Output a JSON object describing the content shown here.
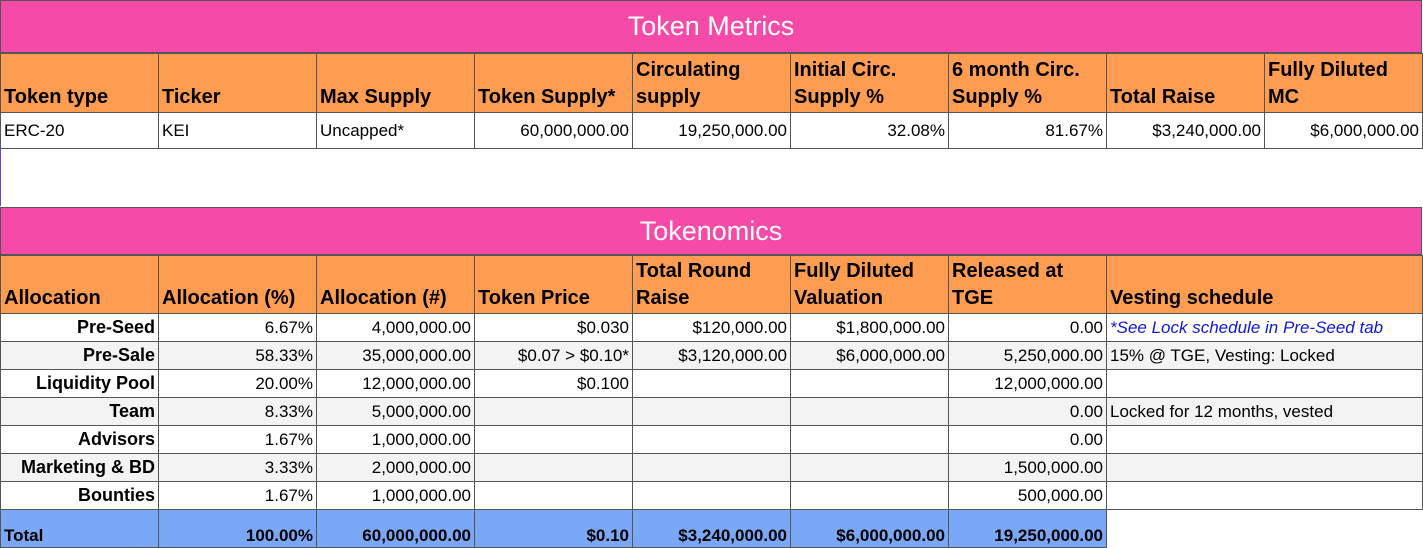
{
  "metrics": {
    "title": "Token Metrics",
    "headers": [
      "Token type",
      "Ticker",
      "Max Supply",
      "Token Supply*",
      "Circulating supply",
      "Initial Circ. Supply %",
      "6 month Circ. Supply %",
      "Total Raise",
      "Fully Diluted MC"
    ],
    "row": [
      "ERC-20",
      "KEI",
      "Uncapped*",
      "60,000,000.00",
      "19,250,000.00",
      "32.08%",
      "81.67%",
      "$3,240,000.00",
      "$6,000,000.00"
    ]
  },
  "tokenomics": {
    "title": "Tokenomics",
    "headers": [
      "Allocation",
      "Allocation (%)",
      "Allocation (#)",
      "Token Price",
      "Total Round Raise",
      "Fully Diluted Valuation",
      "Released at TGE",
      "Vesting schedule"
    ],
    "rows": [
      [
        "Pre-Seed",
        "6.67%",
        "4,000,000.00",
        "$0.030",
        "$120,000.00",
        "$1,800,000.00",
        "0.00",
        "*See Lock schedule in Pre-Seed tab"
      ],
      [
        "Pre-Sale",
        "58.33%",
        "35,000,000.00",
        "$0.07 > $0.10*",
        "$3,120,000.00",
        "$6,000,000.00",
        "5,250,000.00",
        "15% @ TGE, Vesting: Locked"
      ],
      [
        "Liquidity Pool",
        "20.00%",
        "12,000,000.00",
        "$0.100",
        "",
        "",
        "12,000,000.00",
        ""
      ],
      [
        "Team",
        "8.33%",
        "5,000,000.00",
        "",
        "",
        "",
        "0.00",
        "Locked for 12 months, vested"
      ],
      [
        "Advisors",
        "1.67%",
        "1,000,000.00",
        "",
        "",
        "",
        "0.00",
        ""
      ],
      [
        "Marketing & BD",
        "3.33%",
        "2,000,000.00",
        "",
        "",
        "",
        "1,500,000.00",
        ""
      ],
      [
        "Bounties",
        "1.67%",
        "1,000,000.00",
        "",
        "",
        "",
        "500,000.00",
        ""
      ]
    ],
    "total": [
      "Total",
      "100.00%",
      "60,000,000.00",
      "$0.10",
      "$3,240,000.00",
      "$6,000,000.00",
      "19,250,000.00"
    ]
  },
  "colors": {
    "banner": "#f54aa8",
    "header": "#fe9d52",
    "total_row": "#7ba7f7",
    "link_text": "#0f17d8"
  }
}
